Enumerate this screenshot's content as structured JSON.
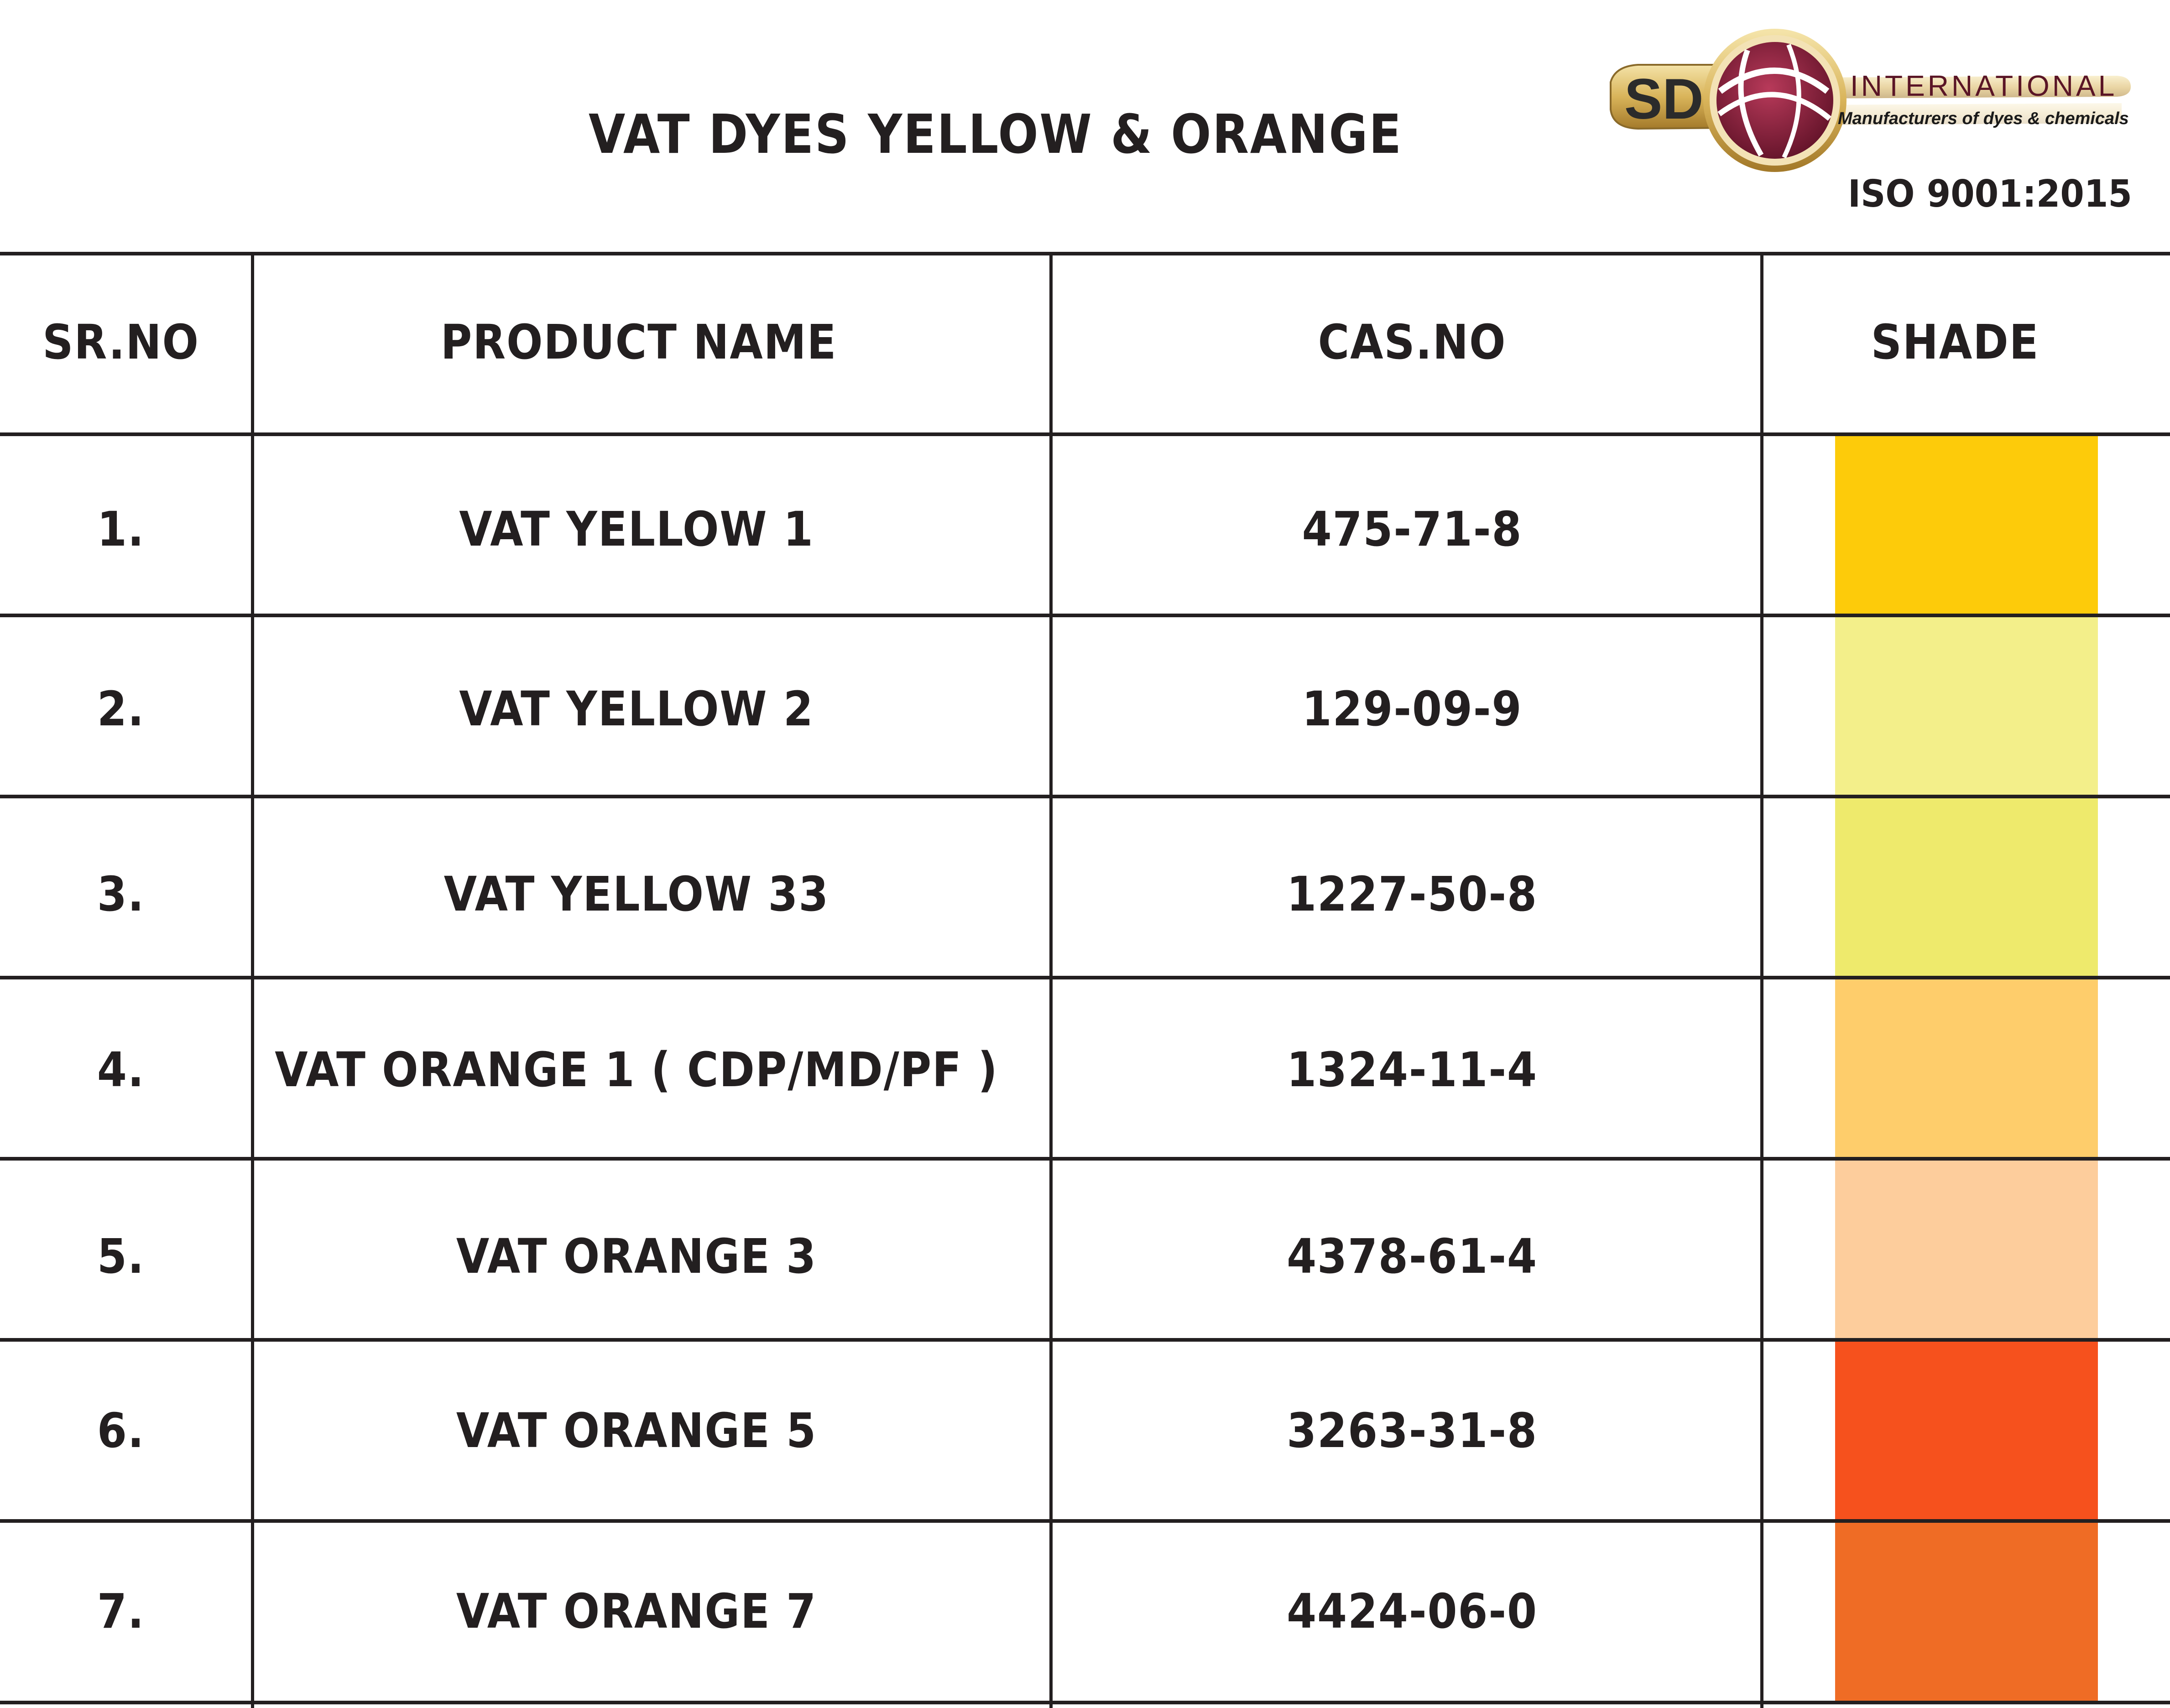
{
  "header": {
    "title": "VAT DYES YELLOW & ORANGE",
    "logo": {
      "mark": "SD",
      "name": "INTERNATIONAL",
      "tagline": "Manufacturers of dyes & chemicals",
      "icon": "globe-swoosh-icon"
    },
    "certification": "ISO 9001:2015"
  },
  "table": {
    "columns": [
      "SR.NO",
      "PRODUCT NAME",
      "CAS.NO",
      "SHADE"
    ],
    "rows": [
      {
        "sr": "1.",
        "product": "VAT YELLOW 1",
        "cas": "475-71-8",
        "shade": "#fdcb0a"
      },
      {
        "sr": "2.",
        "product": "VAT YELLOW 2",
        "cas": "129-09-9",
        "shade": "#f3ef8a"
      },
      {
        "sr": "3.",
        "product": "VAT YELLOW 33",
        "cas": "1227-50-8",
        "shade": "#eeea6c"
      },
      {
        "sr": "4.",
        "product": "VAT ORANGE 1 ( CDP/MD/PF )",
        "cas": "1324-11-4",
        "shade": "#fecd6b"
      },
      {
        "sr": "5.",
        "product": "VAT ORANGE 3",
        "cas": "4378-61-4",
        "shade": "#fdcd9c"
      },
      {
        "sr": "6.",
        "product": "VAT ORANGE 5",
        "cas": "3263-31-8",
        "shade": "#f6511d"
      },
      {
        "sr": "7.",
        "product": "VAT ORANGE 7",
        "cas": "4424-06-0",
        "shade": "#ef6c25"
      }
    ]
  }
}
